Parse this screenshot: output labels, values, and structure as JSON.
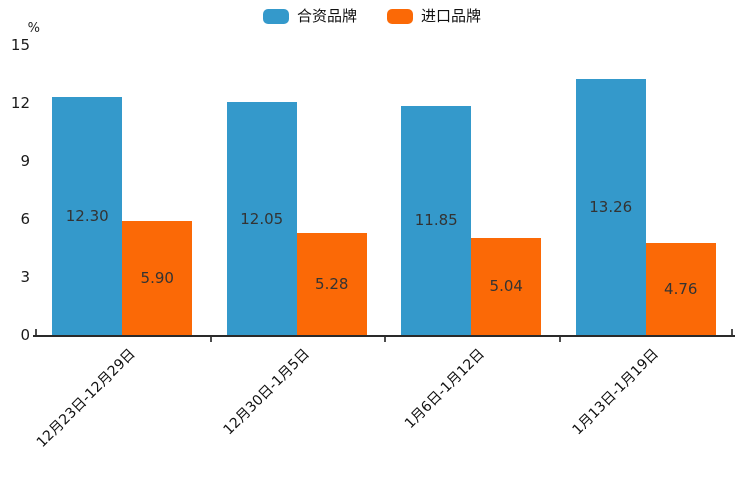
{
  "legend": {
    "items": [
      {
        "label": "合资品牌",
        "color": "#3499cb"
      },
      {
        "label": "进口品牌",
        "color": "#fb6906"
      }
    ]
  },
  "y_axis": {
    "unit": "%",
    "tick_labels": [
      "0",
      "3",
      "6",
      "9",
      "12",
      "15"
    ]
  },
  "chart_data": {
    "type": "bar",
    "categories": [
      "12月23日-12月29日",
      "12月30日-1月5日",
      "1月6日-1月12日",
      "1月13日-1月19日"
    ],
    "series": [
      {
        "name": "合资品牌",
        "color": "#3499cb",
        "values": [
          12.3,
          12.05,
          11.85,
          13.26
        ],
        "value_labels": [
          "12.30",
          "12.05",
          "11.85",
          "13.26"
        ]
      },
      {
        "name": "进口品牌",
        "color": "#fb6906",
        "values": [
          5.9,
          5.28,
          5.04,
          4.76
        ],
        "value_labels": [
          "5.90",
          "5.28",
          "5.04",
          "4.76"
        ]
      }
    ],
    "title": "",
    "xlabel": "",
    "ylabel": "%",
    "ylim": [
      0,
      15
    ],
    "yticks": [
      0,
      3,
      6,
      9,
      12,
      15
    ],
    "grid": false,
    "legend_position": "top-center",
    "value_label_position": "inside-center",
    "x_label_rotation_deg": 45
  }
}
